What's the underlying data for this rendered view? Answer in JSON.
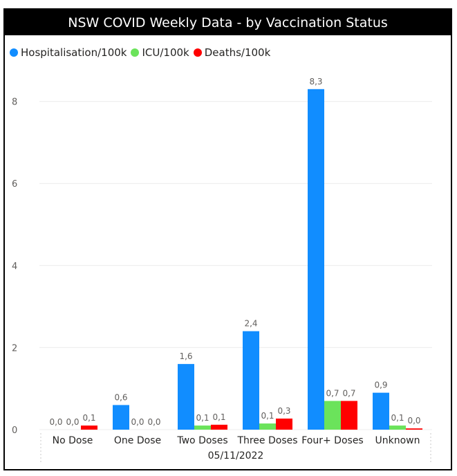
{
  "chart_data": {
    "type": "bar",
    "title": "NSW COVID Weekly Data - by Vaccination Status",
    "xlabel": "05/11/2022",
    "ylabel": "",
    "categories": [
      "No Dose",
      "One Dose",
      "Two Doses",
      "Three Doses",
      "Four+ Doses",
      "Unknown"
    ],
    "series": [
      {
        "name": "Hospitalisation/100k",
        "color": "#118DFF",
        "values": [
          0.0,
          0.6,
          1.6,
          2.4,
          8.3,
          0.9
        ],
        "labels": [
          "0,0",
          "0,6",
          "1,6",
          "2,4",
          "8,3",
          "0,9"
        ]
      },
      {
        "name": "ICU/100k",
        "color": "#6BE35B",
        "values": [
          0.0,
          0.0,
          0.1,
          0.15,
          0.7,
          0.1
        ],
        "labels": [
          "0,0",
          "0,0",
          "0,1",
          "0,1",
          "0,7",
          "0,1"
        ]
      },
      {
        "name": "Deaths/100k",
        "color": "#FF0000",
        "values": [
          0.1,
          0.0,
          0.12,
          0.27,
          0.7,
          0.03
        ],
        "labels": [
          "0,1",
          "0,0",
          "0,1",
          "0,3",
          "0,7",
          "0,0"
        ]
      }
    ],
    "ylim": [
      0,
      8.8
    ],
    "yticks": [
      0,
      2,
      4,
      6,
      8
    ],
    "grid": true,
    "legend_position": "top-left"
  }
}
